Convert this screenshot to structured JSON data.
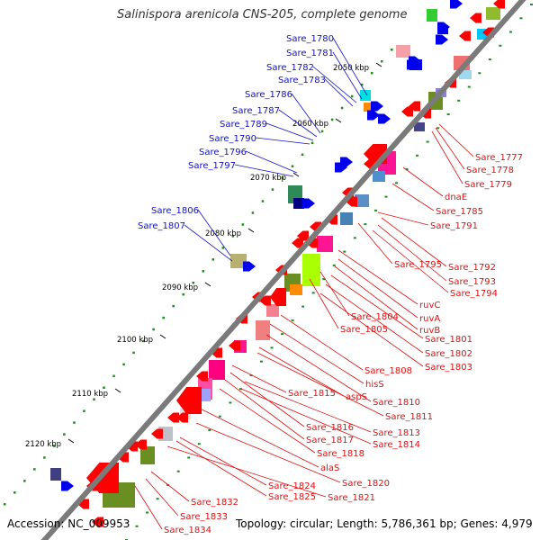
{
  "title": "Salinispora arenicola CNS-205, complete genome",
  "footer": {
    "accession": "Accession: NC_009953",
    "summary": "Topology: circular; Length: 5,786,361 bp; Genes: 4,979"
  },
  "colors": {
    "backbone": "#7a7a7a",
    "tick_dot": "#1e8c1e",
    "forward_label": "#1010c8",
    "reverse_label": "#e01010",
    "reverse_gene": "#ff0000",
    "forward_gene": "#0000ee"
  },
  "axis": {
    "unit": "kbp",
    "ticks": [
      "2050 kbp",
      "2060 kbp",
      "2070 kbp",
      "2080 kbp",
      "2090 kbp",
      "2100 kbp",
      "2110 kbp",
      "2120 kbp"
    ]
  },
  "forward_labels": [
    "Sare_1780",
    "Sare_1781",
    "Sare_1782",
    "Sare_1783",
    "Sare_1786",
    "Sare_1787",
    "Sare_1789",
    "Sare_1790",
    "Sare_1796",
    "Sare_1797",
    "Sare_1806",
    "Sare_1807"
  ],
  "reverse_labels": [
    "Sare_1777",
    "Sare_1778",
    "Sare_1779",
    "dnaE",
    "Sare_1785",
    "Sare_1791",
    "Sare_1795",
    "Sare_1792",
    "Sare_1793",
    "Sare_1794",
    "ruvC",
    "Sare_1804",
    "ruvA",
    "Sare_1805",
    "ruvB",
    "Sare_1801",
    "Sare_1802",
    "Sare_1803",
    "Sare_1808",
    "hisS",
    "Sare_1815",
    "aspS",
    "Sare_1810",
    "Sare_1811",
    "Sare_1816",
    "Sare_1813",
    "Sare_1817",
    "Sare_1814",
    "Sare_1818",
    "alaS",
    "Sare_1820",
    "Sare_1824",
    "Sare_1825",
    "Sare_1821",
    "Sare_1832",
    "Sare_1833",
    "Sare_1834"
  ]
}
